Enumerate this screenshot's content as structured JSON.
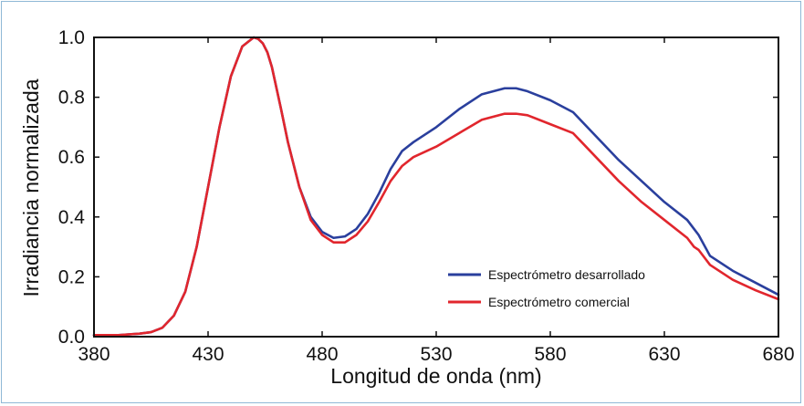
{
  "chart_data": {
    "type": "line",
    "xlabel": "Longitud de onda (nm)",
    "ylabel": "Irradiancia normalizada",
    "xlim": [
      380,
      680
    ],
    "ylim": [
      0.0,
      1.0
    ],
    "xticks": [
      "380",
      "430",
      "480",
      "530",
      "580",
      "630",
      "680"
    ],
    "xtick_values": [
      380,
      430,
      480,
      530,
      580,
      630,
      680
    ],
    "yticks": [
      "0.0",
      "0.2",
      "0.4",
      "0.6",
      "0.8",
      "1.0"
    ],
    "ytick_values": [
      0.0,
      0.2,
      0.4,
      0.6,
      0.8,
      1.0
    ],
    "grid": false,
    "legend_position": "lower-right",
    "series": [
      {
        "name": "Espectrómetro desarrollado",
        "color": "#2a3f9d",
        "x": [
          380,
          390,
          400,
          405,
          410,
          415,
          420,
          425,
          430,
          435,
          440,
          445,
          450,
          452,
          454,
          456,
          458,
          460,
          462,
          465,
          470,
          475,
          480,
          485,
          490,
          495,
          500,
          505,
          510,
          515,
          520,
          530,
          540,
          550,
          560,
          565,
          570,
          580,
          590,
          600,
          610,
          620,
          630,
          640,
          643,
          645,
          650,
          660,
          670,
          680
        ],
        "y": [
          0.005,
          0.005,
          0.01,
          0.015,
          0.03,
          0.07,
          0.15,
          0.3,
          0.5,
          0.7,
          0.87,
          0.97,
          1.0,
          0.995,
          0.98,
          0.95,
          0.9,
          0.83,
          0.76,
          0.65,
          0.5,
          0.4,
          0.35,
          0.33,
          0.335,
          0.36,
          0.41,
          0.48,
          0.56,
          0.62,
          0.65,
          0.7,
          0.76,
          0.81,
          0.83,
          0.83,
          0.82,
          0.79,
          0.75,
          0.67,
          0.59,
          0.52,
          0.45,
          0.39,
          0.36,
          0.34,
          0.27,
          0.22,
          0.18,
          0.14
        ]
      },
      {
        "name": "Espectrómetro comercial",
        "color": "#e1262d",
        "x": [
          380,
          390,
          400,
          405,
          410,
          415,
          420,
          425,
          430,
          435,
          440,
          445,
          450,
          452,
          454,
          456,
          458,
          460,
          462,
          465,
          470,
          475,
          480,
          485,
          490,
          495,
          500,
          505,
          510,
          515,
          520,
          530,
          540,
          550,
          560,
          565,
          570,
          580,
          590,
          600,
          610,
          620,
          630,
          640,
          643,
          645,
          650,
          660,
          670,
          680
        ],
        "y": [
          0.005,
          0.005,
          0.01,
          0.015,
          0.03,
          0.07,
          0.15,
          0.3,
          0.5,
          0.7,
          0.87,
          0.97,
          1.0,
          0.995,
          0.98,
          0.95,
          0.9,
          0.83,
          0.76,
          0.65,
          0.5,
          0.39,
          0.34,
          0.315,
          0.315,
          0.34,
          0.385,
          0.45,
          0.52,
          0.57,
          0.6,
          0.635,
          0.68,
          0.725,
          0.745,
          0.745,
          0.74,
          0.71,
          0.68,
          0.6,
          0.52,
          0.45,
          0.39,
          0.33,
          0.3,
          0.29,
          0.24,
          0.19,
          0.155,
          0.125
        ]
      }
    ]
  }
}
